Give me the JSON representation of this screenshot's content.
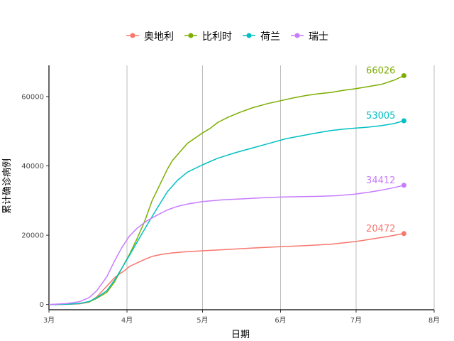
{
  "chart_data": {
    "type": "line",
    "title": "",
    "xlabel": "日期",
    "ylabel": "累计确诊病例",
    "x_ticks": [
      "3月",
      "4月",
      "5月",
      "6月",
      "7月",
      "8月"
    ],
    "x_tick_values": [
      1,
      32,
      62,
      93,
      123,
      154
    ],
    "xlim": [
      1,
      154
    ],
    "y_ticks": [
      0,
      20000,
      40000,
      60000
    ],
    "y_tick_labels": [
      "0",
      "20000",
      "40000",
      "60000"
    ],
    "ylim": [
      -1500,
      69000
    ],
    "grid": "vertical-major",
    "legend_position": "top",
    "series": [
      {
        "name": "奥地利",
        "color": "#F8766D",
        "end_label": "20472",
        "x": [
          1,
          8,
          13,
          17,
          20,
          24,
          27,
          29,
          31,
          33,
          36,
          39,
          42,
          46,
          50,
          55,
          62,
          72,
          82,
          93,
          103,
          113,
          123,
          130,
          136,
          142
        ],
        "y": [
          0,
          50,
          200,
          700,
          2200,
          5300,
          7700,
          8800,
          9800,
          11000,
          12000,
          13000,
          13900,
          14500,
          14900,
          15200,
          15500,
          15900,
          16300,
          16700,
          17000,
          17400,
          18200,
          19000,
          19700,
          20472
        ]
      },
      {
        "name": "比利时",
        "color": "#7CAE00",
        "end_label": "66026",
        "x": [
          1,
          8,
          13,
          17,
          20,
          24,
          27,
          30,
          33,
          36,
          39,
          42,
          45,
          48,
          50,
          53,
          56,
          59,
          62,
          65,
          68,
          72,
          77,
          82,
          88,
          93,
          98,
          103,
          108,
          113,
          118,
          123,
          128,
          133,
          138,
          142
        ],
        "y": [
          0,
          100,
          300,
          800,
          1800,
          3500,
          6500,
          10500,
          14500,
          19000,
          24000,
          30000,
          34500,
          39000,
          41500,
          44000,
          46500,
          48000,
          49500,
          50800,
          52500,
          54000,
          55500,
          56800,
          58000,
          58800,
          59600,
          60300,
          60800,
          61200,
          61800,
          62300,
          62900,
          63500,
          64700,
          66026
        ]
      },
      {
        "name": "荷兰",
        "color": "#00BFC4",
        "end_label": "53005",
        "x": [
          1,
          8,
          13,
          17,
          20,
          24,
          27,
          30,
          33,
          36,
          40,
          44,
          48,
          52,
          56,
          62,
          68,
          75,
          82,
          89,
          95,
          102,
          108,
          113,
          118,
          123,
          128,
          133,
          138,
          142
        ],
        "y": [
          0,
          80,
          300,
          900,
          2000,
          4000,
          7000,
          10500,
          14200,
          18000,
          23000,
          27800,
          32500,
          35800,
          38200,
          40300,
          42200,
          43800,
          45200,
          46600,
          47800,
          48800,
          49600,
          50200,
          50600,
          50900,
          51200,
          51600,
          52200,
          53005
        ]
      },
      {
        "name": "瑞士",
        "color": "#C77CFF",
        "end_label": "34412",
        "x": [
          1,
          8,
          13,
          17,
          20,
          24,
          27,
          30,
          33,
          36,
          40,
          44,
          48,
          52,
          56,
          62,
          70,
          78,
          86,
          93,
          100,
          108,
          115,
          122,
          128,
          133,
          138,
          142
        ],
        "y": [
          0,
          300,
          800,
          2000,
          4000,
          8000,
          12500,
          16500,
          19800,
          22000,
          24200,
          25800,
          27300,
          28300,
          29000,
          29700,
          30200,
          30500,
          30800,
          31000,
          31100,
          31200,
          31400,
          31800,
          32400,
          33000,
          33700,
          34412
        ]
      }
    ]
  }
}
